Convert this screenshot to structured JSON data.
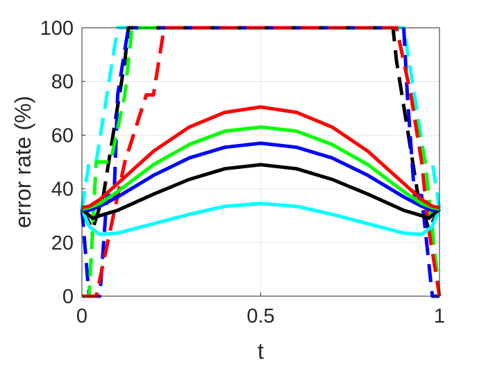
{
  "chart_data": {
    "type": "line",
    "title": "",
    "xlabel": "t",
    "ylabel": "error rate (%)",
    "xlim": [
      0,
      1
    ],
    "ylim": [
      0,
      100
    ],
    "xticks": [
      0,
      0.5,
      1
    ],
    "xtick_labels": [
      "0",
      "0.5",
      "1"
    ],
    "yticks": [
      0,
      20,
      40,
      60,
      80,
      100
    ],
    "ytick_labels": [
      "0",
      "20",
      "40",
      "60",
      "80",
      "100"
    ],
    "grid": true,
    "legend": "none",
    "series": [
      {
        "color": "#00ffff",
        "style": "solid",
        "x": [
          0,
          0.02,
          0.05,
          0.1,
          0.2,
          0.3,
          0.4,
          0.5,
          0.6,
          0.7,
          0.8,
          0.9,
          0.95,
          0.98,
          1
        ],
        "y": [
          32.5,
          26,
          23,
          23.5,
          27,
          30.5,
          33.5,
          34.5,
          33.5,
          30.5,
          27,
          23.5,
          23,
          26,
          32.5
        ]
      },
      {
        "color": "#000000",
        "style": "solid",
        "x": [
          0,
          0.03,
          0.05,
          0.1,
          0.2,
          0.3,
          0.4,
          0.5,
          0.6,
          0.7,
          0.8,
          0.9,
          0.95,
          0.97,
          1
        ],
        "y": [
          32.5,
          29,
          30,
          32,
          38,
          43.5,
          47.5,
          49,
          47.5,
          43.5,
          38,
          32,
          30,
          29,
          32.5
        ]
      },
      {
        "color": "#0000ff",
        "style": "solid",
        "x": [
          0,
          0.02,
          0.05,
          0.1,
          0.2,
          0.3,
          0.4,
          0.5,
          0.6,
          0.7,
          0.8,
          0.9,
          0.95,
          0.98,
          1
        ],
        "y": [
          32.5,
          32,
          33.5,
          37,
          45,
          51.5,
          55.5,
          57,
          55.5,
          51.5,
          45,
          37,
          33.5,
          32,
          32.5
        ]
      },
      {
        "color": "#00ff00",
        "style": "solid",
        "x": [
          0,
          0.02,
          0.05,
          0.1,
          0.2,
          0.3,
          0.4,
          0.5,
          0.6,
          0.7,
          0.8,
          0.9,
          0.95,
          0.98,
          1
        ],
        "y": [
          32.5,
          33,
          34.5,
          39,
          49,
          56.5,
          61.5,
          63,
          61.5,
          56.5,
          49,
          39,
          34.5,
          33,
          32.5
        ]
      },
      {
        "color": "#ff0000",
        "style": "solid",
        "x": [
          0,
          0.02,
          0.05,
          0.1,
          0.2,
          0.3,
          0.4,
          0.5,
          0.6,
          0.7,
          0.8,
          0.9,
          0.95,
          0.98,
          1
        ],
        "y": [
          33,
          33.5,
          36,
          42,
          54,
          63,
          68.5,
          70.5,
          68.5,
          63,
          54,
          42,
          36,
          33.5,
          33
        ]
      },
      {
        "color": "#00ffff",
        "style": "dashed",
        "x": [
          0,
          0.02,
          0.04,
          0.07,
          0.1,
          0.11,
          0.89,
          0.9,
          0.93,
          0.96,
          0.98,
          1
        ],
        "y": [
          32.5,
          50,
          50,
          75,
          100,
          100,
          100,
          100,
          75,
          50,
          50,
          32.5
        ]
      },
      {
        "color": "#000000",
        "style": "dashed",
        "x": [
          0,
          0.03,
          0.06,
          0.09,
          0.12,
          0.13,
          0.87,
          0.88,
          0.91,
          0.94,
          0.97,
          1
        ],
        "y": [
          32.5,
          25,
          37.5,
          62.5,
          87.5,
          100,
          100,
          87.5,
          62.5,
          37.5,
          25,
          32.5
        ]
      },
      {
        "color": "#0000ff",
        "style": "dashed",
        "x": [
          0,
          0.02,
          0.05,
          0.07,
          0.09,
          0.1,
          0.13,
          0.87,
          0.9,
          0.91,
          0.93,
          0.95,
          0.98,
          1
        ],
        "y": [
          32.5,
          0,
          0,
          37.5,
          37.5,
          75,
          100,
          100,
          100,
          75,
          37.5,
          37.5,
          0,
          0
        ]
      },
      {
        "color": "#00ff00",
        "style": "dashed",
        "x": [
          0,
          0.02,
          0.04,
          0.08,
          0.12,
          0.14,
          0.16,
          0.84,
          0.88,
          0.92,
          0.96,
          0.98,
          1
        ],
        "y": [
          0,
          0,
          50,
          50,
          75,
          100,
          100,
          100,
          100,
          75,
          50,
          25,
          0
        ]
      },
      {
        "color": "#ff0000",
        "style": "dashed",
        "x": [
          0,
          0.04,
          0.08,
          0.12,
          0.18,
          0.2,
          0.23,
          0.24,
          0.87,
          0.88,
          0.92,
          0.95,
          0.97,
          1
        ],
        "y": [
          0,
          0,
          25,
          50,
          75,
          75,
          100,
          100,
          100,
          100,
          75,
          50,
          25,
          0
        ]
      }
    ]
  }
}
